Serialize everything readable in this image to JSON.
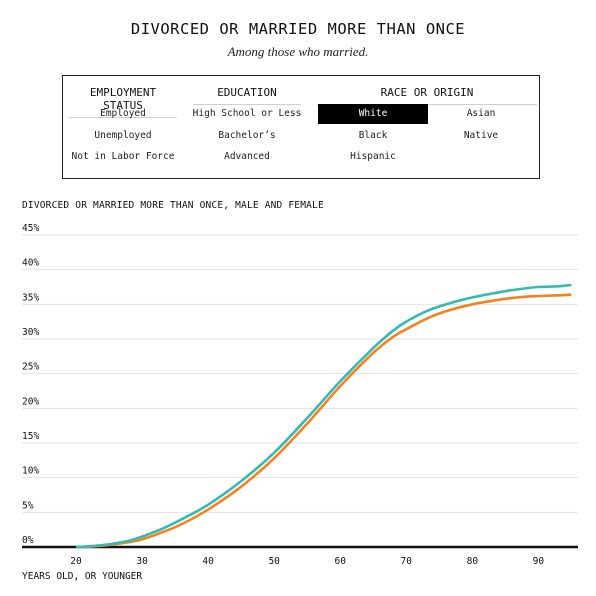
{
  "header": {
    "title": "DIVORCED OR MARRIED MORE THAN ONCE",
    "subtitle": "Among those who married."
  },
  "filters": {
    "employment": {
      "label": "EMPLOYMENT STATUS",
      "options": [
        "Employed",
        "Unemployed",
        "Not in Labor Force"
      ]
    },
    "education": {
      "label": "EDUCATION",
      "options": [
        "High School or Less",
        "Bachelor’s",
        "Advanced"
      ]
    },
    "race": {
      "label": "RACE OR ORIGIN",
      "options": [
        "White",
        "Asian",
        "Black",
        "Native",
        "Hispanic"
      ],
      "selected": "White"
    }
  },
  "chart_data": {
    "type": "line",
    "title": "DIVORCED OR MARRIED MORE THAN ONCE, MALE AND FEMALE",
    "xlabel": "YEARS OLD, OR YOUNGER",
    "ylabel": "",
    "xlim": [
      15,
      96
    ],
    "ylim": [
      0,
      45
    ],
    "x_ticks": [
      "20",
      "30",
      "40",
      "50",
      "60",
      "70",
      "80",
      "90"
    ],
    "y_ticks": [
      "0%",
      "5%",
      "10%",
      "15%",
      "20%",
      "25%",
      "30%",
      "35%",
      "40%",
      "45%"
    ],
    "grid": true,
    "legend": "none",
    "x": [
      20,
      22,
      25,
      28,
      30,
      33,
      36,
      40,
      45,
      50,
      55,
      60,
      65,
      68,
      70,
      73,
      76,
      80,
      85,
      88,
      90,
      93,
      95
    ],
    "series": [
      {
        "color": "#36b9b0",
        "values": [
          0,
          0.1,
          0.4,
          0.9,
          1.5,
          2.6,
          4.0,
          6.1,
          9.5,
          13.6,
          18.6,
          23.9,
          28.7,
          31.2,
          32.5,
          34.0,
          35.0,
          36.0,
          36.9,
          37.3,
          37.5,
          37.6,
          37.8
        ]
      },
      {
        "color": "#f58220",
        "values": [
          0,
          0.05,
          0.3,
          0.7,
          1.1,
          2.1,
          3.3,
          5.4,
          8.7,
          12.8,
          17.8,
          23.2,
          28.0,
          30.3,
          31.4,
          32.9,
          34.0,
          35.0,
          35.8,
          36.1,
          36.2,
          36.3,
          36.4
        ]
      }
    ]
  }
}
